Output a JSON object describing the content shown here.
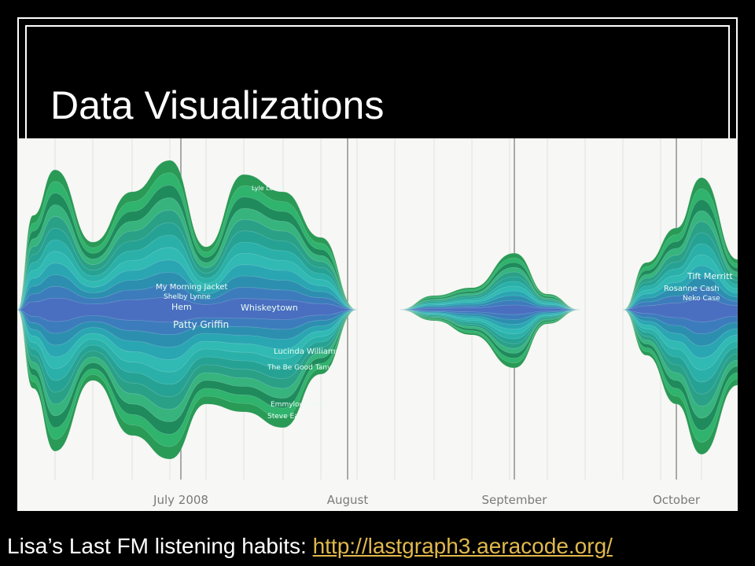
{
  "slide": {
    "title": "Data Visualizations",
    "caption_text": "Lisa’s Last FM listening habits: ",
    "caption_link": "http://lastgraph3.aeracode.org/"
  },
  "chart_data": {
    "type": "area",
    "style": "streamgraph",
    "months": [
      "July 2008",
      "August",
      "September",
      "October"
    ],
    "artist_labels": [
      "Lyle Lovett",
      "My Morning Jacket",
      "Shelby Lynne",
      "Hem",
      "Whiskeytown",
      "Patty Griffin",
      "Lucinda Williams",
      "The Be Good Tanyas",
      "Emmylou Harris",
      "Steve Earle",
      "Tift Merritt",
      "Rosanne Cash",
      "Neko Case"
    ],
    "grid": true
  },
  "colors": {
    "greens": [
      "#2a9a57",
      "#2fb36d",
      "#1f8a5c",
      "#37b47e",
      "#2aa087",
      "#26a294",
      "#2ab0a8",
      "#31b9b4",
      "#2aa6b2",
      "#2d8fb0",
      "#3d7cbc",
      "#4a6fc0"
    ],
    "background": "#f7f7f5",
    "grid_light": "#e4e4e2",
    "grid_dark": "#8f8f8f",
    "link": "#e0b84c"
  }
}
